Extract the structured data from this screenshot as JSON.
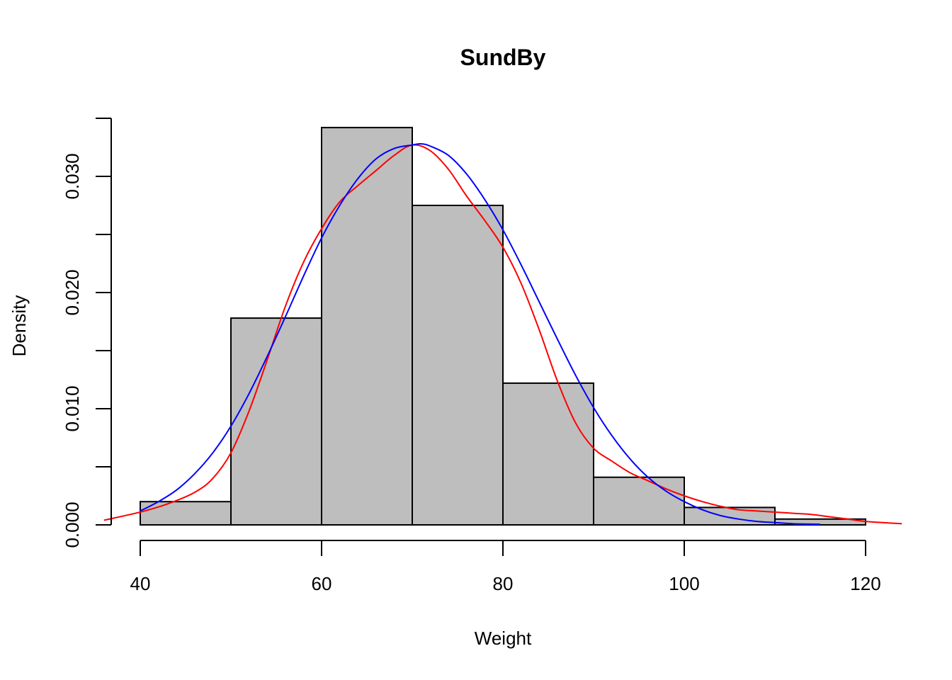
{
  "chart_data": {
    "type": "bar",
    "title": "SundBy",
    "xlabel": "Weight",
    "ylabel": "Density",
    "xlim": [
      40,
      120
    ],
    "ylim": [
      0,
      0.035
    ],
    "x_ticks": [
      "40",
      "60",
      "80",
      "100",
      "120"
    ],
    "y_ticks": [
      "0.000",
      "0.010",
      "0.020",
      "0.030"
    ],
    "bin_edges": [
      40,
      50,
      60,
      70,
      80,
      90,
      100,
      110,
      120
    ],
    "values": [
      0.002,
      0.0178,
      0.0342,
      0.0275,
      0.0122,
      0.0041,
      0.0015,
      0.0005
    ],
    "bar_color": "#bebebe",
    "series": [
      {
        "kind": "line",
        "color": "#ff0000",
        "x": [
          36,
          40,
          43,
          46,
          48,
          50,
          52,
          54,
          56,
          58,
          60,
          62,
          64,
          66,
          68,
          70,
          72,
          74,
          76,
          78,
          80,
          82,
          84,
          86,
          88,
          90,
          92,
          94,
          96,
          98,
          100,
          102,
          104,
          106,
          108,
          110,
          112,
          114,
          116,
          118,
          120,
          124
        ],
        "y": [
          0.0004,
          0.0011,
          0.0018,
          0.0028,
          0.004,
          0.0062,
          0.0098,
          0.0142,
          0.0188,
          0.0226,
          0.0255,
          0.0278,
          0.0292,
          0.0305,
          0.0318,
          0.0327,
          0.0322,
          0.0306,
          0.0283,
          0.0262,
          0.0239,
          0.0208,
          0.0168,
          0.0124,
          0.0088,
          0.0066,
          0.0055,
          0.0045,
          0.0038,
          0.0031,
          0.0025,
          0.002,
          0.0016,
          0.0013,
          0.0012,
          0.0011,
          0.001,
          0.0009,
          0.0007,
          0.0005,
          0.0003,
          0.0001
        ]
      },
      {
        "kind": "line",
        "color": "#0000ff",
        "x": [
          40,
          42,
          44,
          46,
          48,
          50,
          52,
          54,
          56,
          58,
          60,
          62,
          64,
          66,
          68,
          70,
          71,
          72,
          74,
          76,
          78,
          80,
          82,
          84,
          86,
          88,
          90,
          92,
          94,
          96,
          98,
          100,
          102,
          104,
          106,
          108,
          110,
          112,
          115
        ],
        "y": [
          0.0012,
          0.002,
          0.003,
          0.0044,
          0.0062,
          0.0085,
          0.0113,
          0.0145,
          0.0179,
          0.0214,
          0.0247,
          0.0275,
          0.0298,
          0.0315,
          0.0324,
          0.0327,
          0.0328,
          0.0326,
          0.0318,
          0.0302,
          0.028,
          0.0254,
          0.0224,
          0.0192,
          0.016,
          0.0129,
          0.0101,
          0.0077,
          0.0057,
          0.0041,
          0.0029,
          0.002,
          0.0013,
          0.0008,
          0.0005,
          0.0003,
          0.0002,
          0.0001,
          5e-05
        ]
      }
    ]
  }
}
